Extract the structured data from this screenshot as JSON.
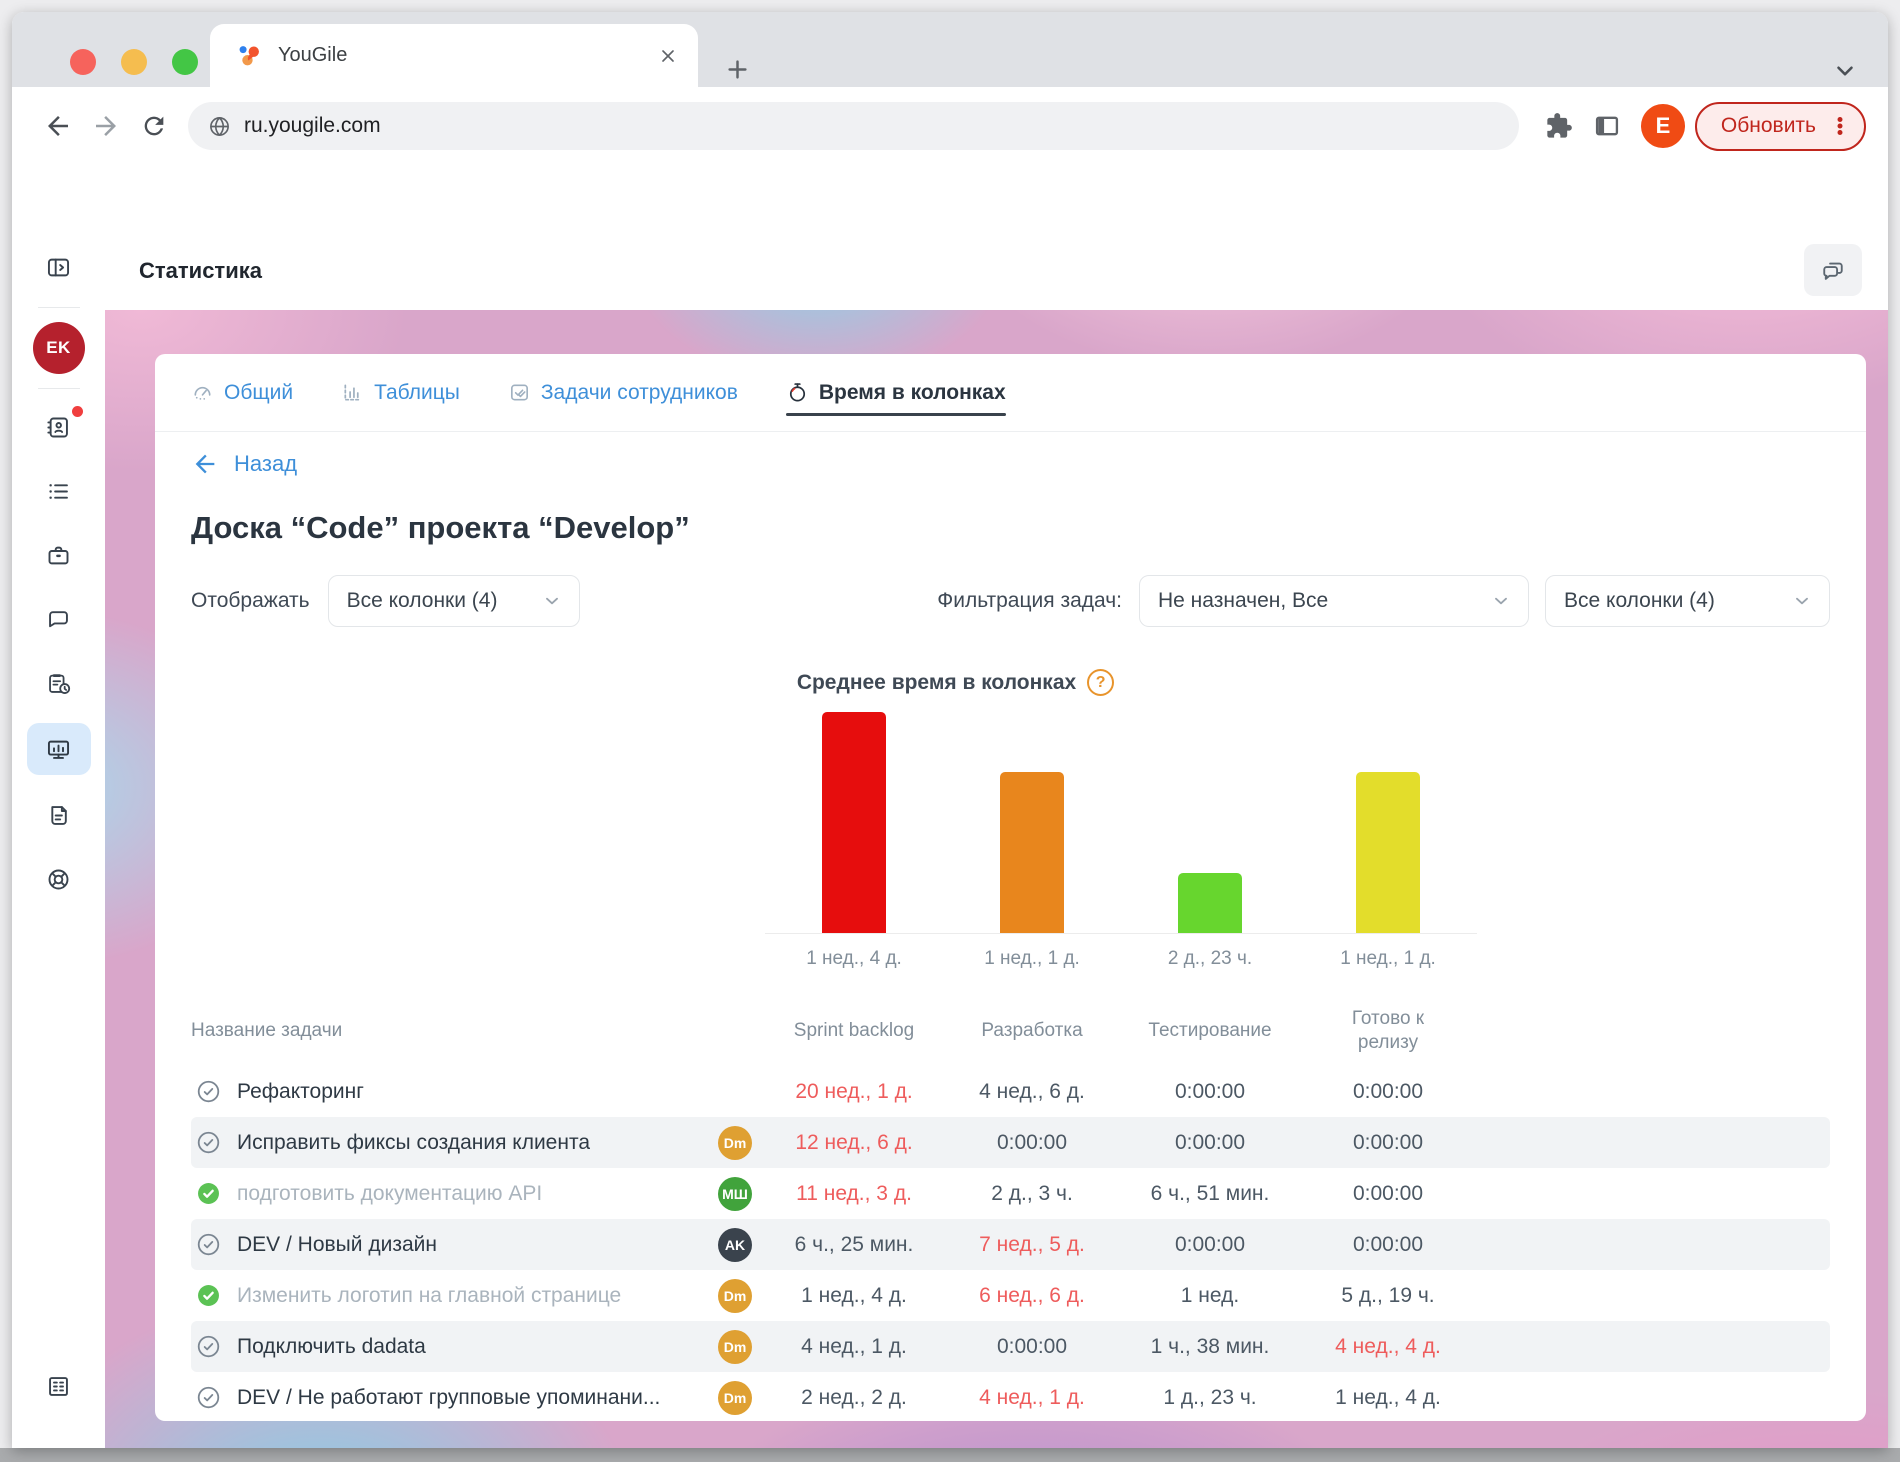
{
  "browser": {
    "tab_title": "YouGile",
    "url": "ru.yougile.com",
    "profile_initial": "E",
    "update_label": "Обновить"
  },
  "app": {
    "header_title": "Статистика",
    "sidebar": {
      "user_initials": "EK",
      "items": [
        "collapse-panel",
        "profile",
        "contacts",
        "tasks",
        "projects",
        "chats",
        "reports",
        "statistics",
        "docs",
        "support",
        "company"
      ],
      "active_item": "statistics",
      "badge_on": "contacts"
    },
    "tabs": {
      "items": [
        {
          "label": "Общий"
        },
        {
          "label": "Таблицы"
        },
        {
          "label": "Задачи сотрудников"
        },
        {
          "label": "Время в колонках"
        }
      ],
      "active_index": 3
    },
    "board": {
      "back_label": "Назад",
      "title": "Доска “Code” проекта “Develop”"
    },
    "controls": {
      "display_label": "Отображать",
      "display_value": "Все колонки (4)",
      "filter_label": "Фильтрация задач:",
      "filter_value": "Не назначен, Все",
      "columns_value": "Все колонки (4)"
    },
    "chart_help_glyph": "?"
  },
  "chart_data": {
    "type": "bar",
    "title": "Среднее время в колонках",
    "categories": [
      "Sprint backlog",
      "Разработка",
      "Тестирование",
      "Готово к релизу"
    ],
    "values_days": [
      11,
      8,
      3,
      8
    ],
    "bar_labels": [
      "1 нед., 4 д.",
      "1 нед., 1 д.",
      "2 д., 23 ч.",
      "1 нед., 1 д."
    ],
    "colors": [
      "#e60d0d",
      "#e8861d",
      "#67d62e",
      "#e3dd2b"
    ],
    "xlabel": "",
    "ylabel": "",
    "ylim": [
      0,
      11
    ],
    "grid": false,
    "legend": false
  },
  "table": {
    "name_header": "Название задачи",
    "columns": [
      "Sprint backlog",
      "Разработка",
      "Тестирование",
      "Готово к релизу"
    ],
    "alert_color": "#ee5c5c",
    "rows": [
      {
        "name": "Рефакторинг",
        "completed": false,
        "avatar": null,
        "values": [
          {
            "text": "20 нед., 1 д.",
            "alert": true
          },
          {
            "text": "4 нед., 6 д.",
            "alert": false
          },
          {
            "text": "0:00:00",
            "alert": false
          },
          {
            "text": "0:00:00",
            "alert": false
          }
        ]
      },
      {
        "name": "Исправить фиксы создания клиента",
        "completed": false,
        "avatar": {
          "text": "Dm",
          "color": "#dfa032"
        },
        "values": [
          {
            "text": "12 нед., 6 д.",
            "alert": true
          },
          {
            "text": "0:00:00",
            "alert": false
          },
          {
            "text": "0:00:00",
            "alert": false
          },
          {
            "text": "0:00:00",
            "alert": false
          }
        ]
      },
      {
        "name": "подготовить документацию API",
        "completed": true,
        "avatar": {
          "text": "МШ",
          "color": "#41a33c"
        },
        "values": [
          {
            "text": "11 нед., 3 д.",
            "alert": true
          },
          {
            "text": "2 д., 3 ч.",
            "alert": false
          },
          {
            "text": "6 ч., 51 мин.",
            "alert": false
          },
          {
            "text": "0:00:00",
            "alert": false
          }
        ]
      },
      {
        "name": "DEV / Новый дизайн",
        "completed": false,
        "avatar": {
          "text": "AK",
          "color": "#3a434d"
        },
        "values": [
          {
            "text": "6 ч., 25 мин.",
            "alert": false
          },
          {
            "text": "7 нед., 5 д.",
            "alert": true
          },
          {
            "text": "0:00:00",
            "alert": false
          },
          {
            "text": "0:00:00",
            "alert": false
          }
        ]
      },
      {
        "name": "Изменить логотип на главной странице",
        "completed": true,
        "avatar": {
          "text": "Dm",
          "color": "#dfa032"
        },
        "values": [
          {
            "text": "1 нед., 4 д.",
            "alert": false
          },
          {
            "text": "6 нед., 6 д.",
            "alert": true
          },
          {
            "text": "1 нед.",
            "alert": false
          },
          {
            "text": "5 д., 19 ч.",
            "alert": false
          }
        ]
      },
      {
        "name": "Подключить dadata",
        "completed": false,
        "avatar": {
          "text": "Dm",
          "color": "#dfa032"
        },
        "values": [
          {
            "text": "4 нед., 1 д.",
            "alert": false
          },
          {
            "text": "0:00:00",
            "alert": false
          },
          {
            "text": "1 ч., 38 мин.",
            "alert": false
          },
          {
            "text": "4 нед., 4 д.",
            "alert": true
          }
        ]
      },
      {
        "name": "DEV / Не работают групповые упоминани...",
        "completed": false,
        "avatar": {
          "text": "Dm",
          "color": "#dfa032"
        },
        "values": [
          {
            "text": "2 нед., 2 д.",
            "alert": false
          },
          {
            "text": "4 нед., 1 д.",
            "alert": true
          },
          {
            "text": "1 д., 23 ч.",
            "alert": false
          },
          {
            "text": "1 нед., 4 д.",
            "alert": false
          }
        ]
      }
    ]
  }
}
